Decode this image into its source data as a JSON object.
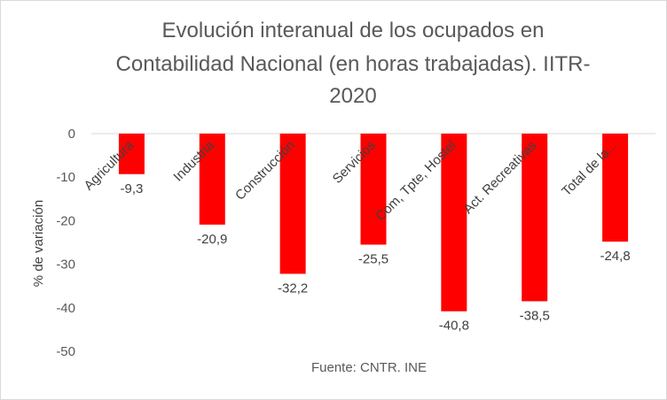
{
  "chart_data": {
    "type": "bar",
    "title_lines": [
      "Evolución interanual de los ocupados en",
      "Contabilidad Nacional (en horas trabajadas). IITR-",
      "2020"
    ],
    "categories": [
      "Agricultura",
      "Industria",
      "Construcción",
      "Servicios",
      "Com, Tpte, Hostel",
      "Act. Recreativas",
      "Total de la..."
    ],
    "values": [
      -9.3,
      -20.9,
      -32.2,
      -25.5,
      -40.8,
      -38.5,
      -24.8
    ],
    "value_labels": [
      "-9,3",
      "-20,9",
      "-32,2",
      "-25,5",
      "-40,8",
      "-38,5",
      "-24,8"
    ],
    "ylabel": "% de variación",
    "xlabel": "",
    "ylim": [
      -50,
      0
    ],
    "yticks": [
      0,
      -10,
      -20,
      -30,
      -40,
      -50
    ],
    "ytick_labels": [
      "0",
      "-10",
      "-20",
      "-30",
      "-40",
      "-50"
    ],
    "bar_color": "#ff0000",
    "axis_color": "#d9d9d9",
    "source": "Fuente: CNTR. INE",
    "grid": false
  }
}
